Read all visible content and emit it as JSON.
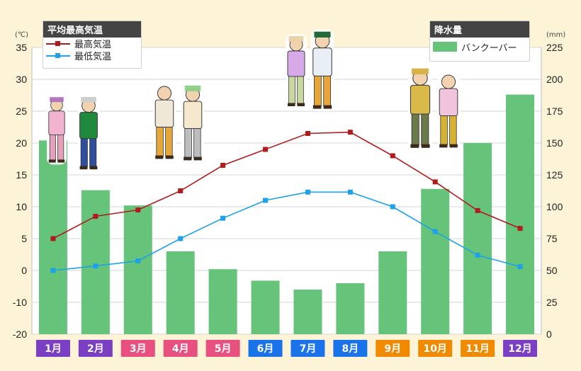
{
  "chart_data": {
    "type": "bar+line",
    "categories": [
      "1月",
      "2月",
      "3月",
      "4月",
      "5月",
      "6月",
      "7月",
      "8月",
      "9月",
      "10月",
      "11月",
      "12月"
    ],
    "month_colors": [
      "#7b3fc4",
      "#7b3fc4",
      "#e8507f",
      "#e8507f",
      "#e8507f",
      "#1a73e8",
      "#1a73e8",
      "#1a73e8",
      "#f08a00",
      "#f08a00",
      "#f08a00",
      "#7b3fc4"
    ],
    "temp_axis": {
      "unit": "(℃)",
      "min": -20,
      "max": 35,
      "ticks": [
        35,
        30,
        25,
        20,
        15,
        10,
        5,
        0,
        -10,
        -20
      ]
    },
    "rain_axis": {
      "unit": "(mm)",
      "min": 0,
      "max": 225,
      "ticks": [
        225,
        200,
        175,
        150,
        125,
        100,
        75,
        50,
        25,
        0
      ]
    },
    "series": [
      {
        "name": "最高気温",
        "color": "#b01c1c",
        "values": [
          5.0,
          8.5,
          9.5,
          12.5,
          16.5,
          19.0,
          21.5,
          21.7,
          18.0,
          13.9,
          9.4,
          6.6
        ]
      },
      {
        "name": "最低気温",
        "color": "#1ea1e8",
        "values": [
          0.0,
          0.7,
          1.5,
          5.0,
          8.2,
          11.0,
          12.3,
          12.3,
          10.0,
          6.1,
          2.4,
          0.6
        ]
      }
    ],
    "rain": {
      "name": "バンクーバー",
      "color": "#66c47a",
      "values": [
        152,
        113,
        101,
        65,
        51,
        42,
        35,
        40,
        65,
        114,
        150,
        188
      ]
    }
  },
  "legend_temp": {
    "title": "平均最高気温",
    "items": [
      "最高気温",
      "最低気温"
    ]
  },
  "legend_rain": {
    "title": "降水量",
    "item": "バンクーバー"
  }
}
